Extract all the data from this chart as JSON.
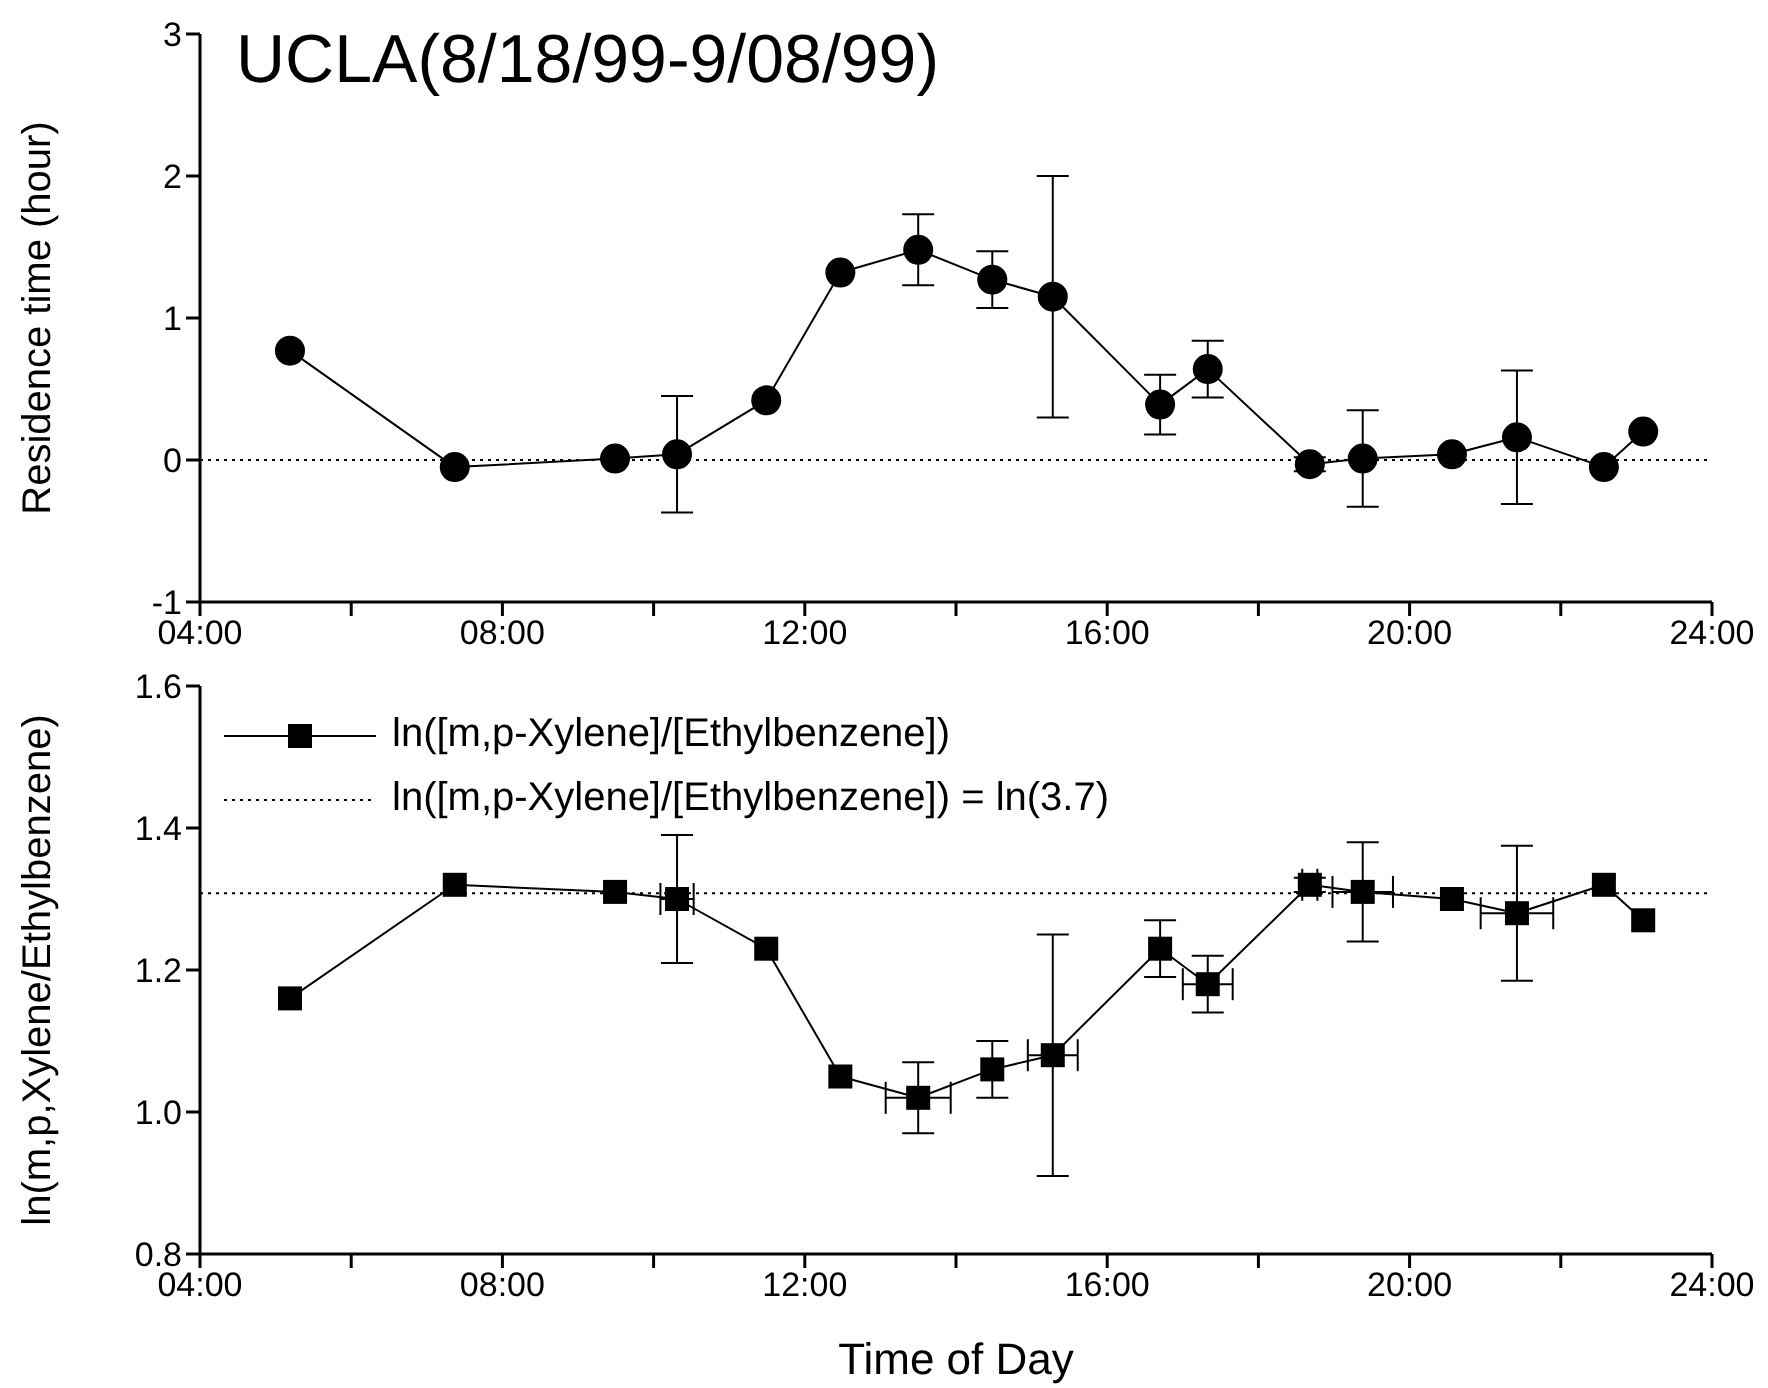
{
  "chart_data": [
    {
      "type": "line",
      "title": "UCLA(8/18/99-9/08/99)",
      "ylabel": "Residence time (hour)",
      "marker": "circle",
      "xlim": [
        4,
        24
      ],
      "xticks": [
        {
          "value": 4,
          "label": "04:00"
        },
        {
          "value": 6,
          "label": null
        },
        {
          "value": 8,
          "label": "08:00"
        },
        {
          "value": 10,
          "label": null
        },
        {
          "value": 12,
          "label": "12:00"
        },
        {
          "value": 14,
          "label": null
        },
        {
          "value": 16,
          "label": "16:00"
        },
        {
          "value": 18,
          "label": null
        },
        {
          "value": 20,
          "label": "20:00"
        },
        {
          "value": 22,
          "label": null
        },
        {
          "value": 24,
          "label": "24:00"
        }
      ],
      "ylim": [
        -1,
        3
      ],
      "yticks": [
        -1,
        0,
        1,
        2,
        3
      ],
      "series": [
        {
          "color": "#000000",
          "x": [
            5.19,
            7.37,
            9.49,
            10.31,
            11.49,
            12.47,
            13.5,
            14.48,
            15.28,
            16.7,
            17.33,
            18.68,
            19.38,
            20.56,
            21.42,
            22.57,
            23.09
          ],
          "values": [
            0.77,
            -0.05,
            0.01,
            0.04,
            0.42,
            1.32,
            1.48,
            1.27,
            1.15,
            0.39,
            0.64,
            -0.03,
            0.01,
            0.04,
            0.16,
            -0.05,
            0.2
          ],
          "errors": [
            null,
            null,
            null,
            0.41,
            null,
            null,
            0.25,
            0.2,
            0.85,
            0.21,
            0.2,
            0.05,
            0.34,
            null,
            0.47,
            null,
            null
          ]
        }
      ],
      "ref_lines": [
        {
          "axis": "y",
          "value": 0,
          "color": "#000000",
          "line_style": "dotted"
        }
      ]
    },
    {
      "type": "line",
      "xlabel": "Time of Day",
      "ylabel": "ln(m,p,Xylene/Ethylbenzene)",
      "marker": "square",
      "legend": "top left",
      "xlim": [
        4,
        24
      ],
      "xticks": [
        {
          "value": 4,
          "label": "04:00"
        },
        {
          "value": 6,
          "label": null
        },
        {
          "value": 8,
          "label": "08:00"
        },
        {
          "value": 10,
          "label": null
        },
        {
          "value": 12,
          "label": "12:00"
        },
        {
          "value": 14,
          "label": null
        },
        {
          "value": 16,
          "label": "16:00"
        },
        {
          "value": 18,
          "label": null
        },
        {
          "value": 20,
          "label": "20:00"
        },
        {
          "value": 22,
          "label": null
        },
        {
          "value": 24,
          "label": "24:00"
        }
      ],
      "ylim": [
        0.8,
        1.6
      ],
      "yticks": [
        0.8,
        {
          "value": 1,
          "label": "1.0"
        },
        1.2,
        1.4,
        1.6
      ],
      "series": [
        {
          "name": "ln([m,p-Xylene]/[Ethylbenzene])",
          "color": "#000000",
          "x": [
            5.19,
            7.37,
            9.49,
            10.31,
            11.49,
            12.47,
            13.5,
            14.48,
            15.28,
            16.7,
            17.33,
            18.68,
            19.38,
            20.56,
            21.42,
            22.57,
            23.09
          ],
          "values": [
            1.16,
            1.32,
            1.31,
            1.3,
            1.23,
            1.05,
            1.02,
            1.06,
            1.08,
            1.23,
            1.18,
            1.32,
            1.31,
            1.3,
            1.28,
            1.32,
            1.27
          ],
          "errors": [
            null,
            null,
            null,
            0.09,
            null,
            null,
            0.05,
            0.04,
            0.17,
            0.04,
            0.04,
            0.01,
            0.07,
            null,
            0.095,
            null,
            null
          ],
          "xerrors": [
            null,
            null,
            null,
            0.22,
            null,
            null,
            0.43,
            null,
            0.33,
            null,
            0.33,
            0.1,
            0.4,
            null,
            0.48,
            null,
            null
          ]
        }
      ],
      "ref_lines": [
        {
          "axis": "y",
          "value": 1.308,
          "label": "ln([m,p-Xylene]/[Ethylbenzene]) = ln(3.7)",
          "color": "#000000",
          "line_style": "dotted"
        }
      ]
    }
  ]
}
